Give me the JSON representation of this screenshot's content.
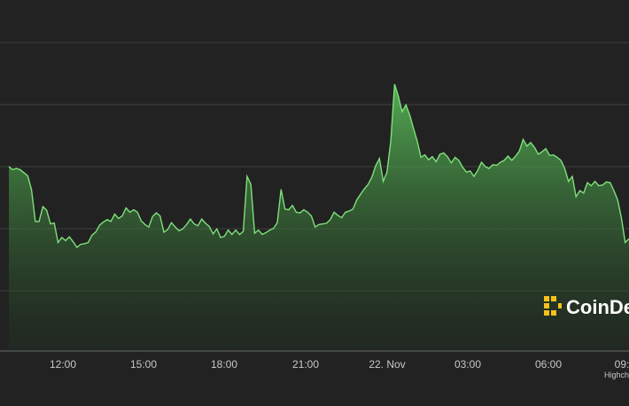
{
  "chart_data": {
    "type": "area",
    "title": "",
    "xlabel": "",
    "ylabel": "",
    "grid": true,
    "x_ticks": [
      "12:00",
      "15:00",
      "18:00",
      "21:00",
      "22. Nov",
      "03:00",
      "06:00",
      "09:"
    ],
    "series": [
      {
        "values": [
          0.598,
          0.588,
          0.592,
          0.588,
          0.578,
          0.568,
          0.522,
          0.42,
          0.42,
          0.468,
          0.456,
          0.412,
          0.415,
          0.352,
          0.368,
          0.358,
          0.37,
          0.354,
          0.336,
          0.346,
          0.348,
          0.352,
          0.376,
          0.386,
          0.408,
          0.418,
          0.426,
          0.42,
          0.444,
          0.43,
          0.438,
          0.464,
          0.45,
          0.458,
          0.45,
          0.422,
          0.41,
          0.402,
          0.436,
          0.448,
          0.438,
          0.385,
          0.394,
          0.416,
          0.402,
          0.39,
          0.396,
          0.41,
          0.428,
          0.412,
          0.406,
          0.428,
          0.414,
          0.404,
          0.38,
          0.396,
          0.368,
          0.372,
          0.392,
          0.378,
          0.392,
          0.378,
          0.388,
          0.566,
          0.54,
          0.382,
          0.392,
          0.378,
          0.384,
          0.392,
          0.398,
          0.416,
          0.524,
          0.46,
          0.458,
          0.472,
          0.45,
          0.448,
          0.458,
          0.45,
          0.438,
          0.402,
          0.41,
          0.412,
          0.414,
          0.426,
          0.45,
          0.44,
          0.432,
          0.45,
          0.454,
          0.46,
          0.49,
          0.508,
          0.526,
          0.54,
          0.564,
          0.6,
          0.624,
          0.55,
          0.58,
          0.68,
          0.865,
          0.826,
          0.776,
          0.798,
          0.766,
          0.722,
          0.68,
          0.628,
          0.636,
          0.62,
          0.63,
          0.614,
          0.638,
          0.642,
          0.63,
          0.61,
          0.628,
          0.618,
          0.596,
          0.58,
          0.584,
          0.566,
          0.586,
          0.612,
          0.598,
          0.592,
          0.604,
          0.602,
          0.612,
          0.618,
          0.632,
          0.618,
          0.632,
          0.648,
          0.686,
          0.664,
          0.676,
          0.66,
          0.638,
          0.646,
          0.656,
          0.634,
          0.636,
          0.628,
          0.618,
          0.592,
          0.55,
          0.566,
          0.5,
          0.52,
          0.512,
          0.546,
          0.536,
          0.55,
          0.536,
          0.538,
          0.548,
          0.546,
          0.52,
          0.49,
          0.43,
          0.352,
          0.364
        ]
      }
    ]
  },
  "credit": {
    "text": "Highch"
  },
  "watermark": {
    "text": "CoinDe",
    "logo_color": "#f5c21a"
  },
  "colors": {
    "line": "#7ee07a",
    "fill_top": "#4caf50",
    "fill_bottom": "#1e2a1e",
    "grid": "#3e3e3e",
    "background": "#222222"
  }
}
